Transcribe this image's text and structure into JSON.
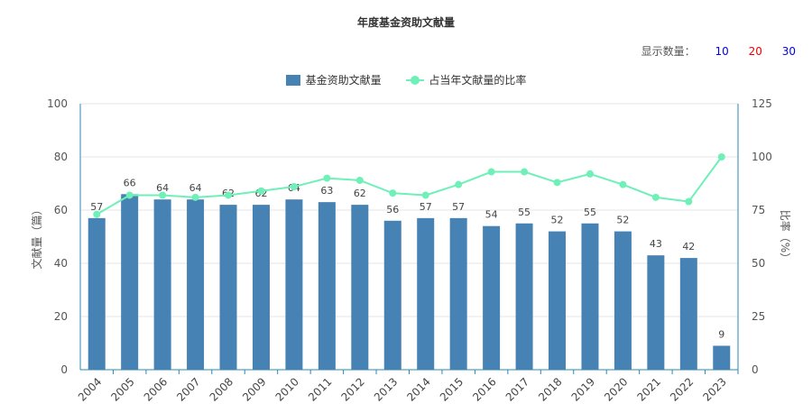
{
  "title": "年度基金资助文献量",
  "count_selector": {
    "label": "显示数量：",
    "options": [
      {
        "label": "10",
        "color": "#0000ee"
      },
      {
        "label": "20",
        "color": "#ee0000"
      },
      {
        "label": "30",
        "color": "#0000ee"
      }
    ]
  },
  "colors": {
    "bar": "#4682b4",
    "line": "#6ff0b8",
    "axis": "#2a8ab0",
    "grid": "#e6e6e6"
  },
  "chart_data": {
    "type": "bar",
    "title": "年度基金资助文献量",
    "categories": [
      "2004",
      "2005",
      "2006",
      "2007",
      "2008",
      "2009",
      "2010",
      "2011",
      "2012",
      "2013",
      "2014",
      "2015",
      "2016",
      "2017",
      "2018",
      "2019",
      "2020",
      "2021",
      "2022",
      "2023"
    ],
    "series": [
      {
        "name": "基金资助文献量",
        "type": "bar",
        "axis": "left",
        "values": [
          57,
          66,
          64,
          64,
          62,
          62,
          64,
          63,
          62,
          56,
          57,
          57,
          54,
          55,
          52,
          55,
          52,
          43,
          42,
          9
        ]
      },
      {
        "name": "占当年文献量的比率",
        "type": "line",
        "axis": "right",
        "values": [
          73,
          82,
          82,
          81,
          82,
          84,
          86,
          90,
          89,
          83,
          82,
          87,
          93,
          93,
          88,
          92,
          87,
          81,
          79,
          100
        ]
      }
    ],
    "ylabel": "文献量（篇）",
    "y2label": "比率（%）",
    "ylim": [
      0,
      100
    ],
    "y2lim": [
      0,
      125
    ],
    "yticks": [
      "0",
      "20",
      "40",
      "60",
      "80",
      "100"
    ],
    "y2ticks": [
      "0",
      "25",
      "50",
      "75",
      "100",
      "125"
    ],
    "grid": true,
    "legend_position": "top-center"
  }
}
